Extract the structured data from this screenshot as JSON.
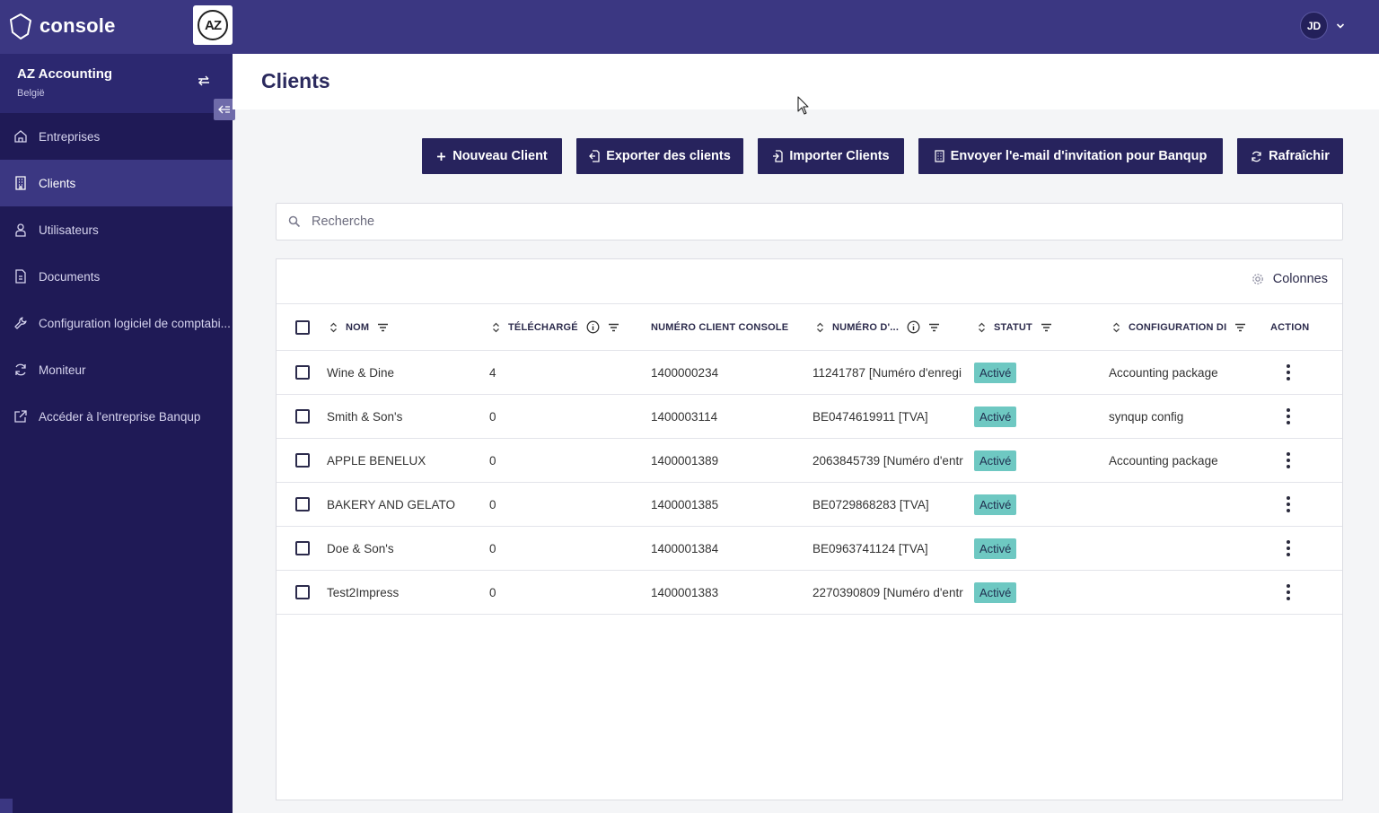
{
  "app": {
    "brand": "console",
    "org_logo": "AZ"
  },
  "user": {
    "initials": "JD"
  },
  "sidebar": {
    "org_name": "AZ Accounting",
    "org_country": "België",
    "items": [
      {
        "label": "Entreprises",
        "icon": "home-icon",
        "active": false
      },
      {
        "label": "Clients",
        "icon": "building-icon",
        "active": true
      },
      {
        "label": "Utilisateurs",
        "icon": "user-icon",
        "active": false
      },
      {
        "label": "Documents",
        "icon": "document-icon",
        "active": false
      },
      {
        "label": "Configuration logiciel de comptabi...",
        "icon": "wrench-icon",
        "active": false
      },
      {
        "label": "Moniteur",
        "icon": "sync-icon",
        "active": false
      },
      {
        "label": "Accéder à l'entreprise Banqup",
        "icon": "external-link-icon",
        "active": false
      }
    ]
  },
  "page": {
    "title": "Clients"
  },
  "toolbar": {
    "new_client": "Nouveau Client",
    "export_clients": "Exporter des clients",
    "import_clients": "Importer Clients",
    "send_invite": "Envoyer l'e-mail d'invitation pour Banqup",
    "refresh": "Rafraîchir"
  },
  "search": {
    "placeholder": "Recherche"
  },
  "table": {
    "columns_button": "Colonnes",
    "headers": {
      "name": "NOM",
      "downloaded": "TÉLÉCHARGÉ",
      "console_number": "NUMÉRO CLIENT CONSOLE",
      "number": "NUMÉRO D'...",
      "status": "STATUT",
      "config": "CONFIGURATION DI",
      "action": "ACTION"
    },
    "rows": [
      {
        "name": "Wine & Dine",
        "downloaded": "4",
        "console_number": "1400000234",
        "number": "11241787 [Numéro d'enregi",
        "status": "Activé",
        "config": "Accounting package"
      },
      {
        "name": "Smith & Son's",
        "downloaded": "0",
        "console_number": "1400003114",
        "number": "BE0474619911 [TVA]",
        "status": "Activé",
        "config": "synqup config"
      },
      {
        "name": "APPLE BENELUX",
        "downloaded": "0",
        "console_number": "1400001389",
        "number": "2063845739 [Numéro d'entr",
        "status": "Activé",
        "config": "Accounting package"
      },
      {
        "name": "BAKERY AND GELATO",
        "downloaded": "0",
        "console_number": "1400001385",
        "number": "BE0729868283 [TVA]",
        "status": "Activé",
        "config": ""
      },
      {
        "name": "Doe & Son's",
        "downloaded": "0",
        "console_number": "1400001384",
        "number": "BE0963741124 [TVA]",
        "status": "Activé",
        "config": ""
      },
      {
        "name": "Test2Impress",
        "downloaded": "0",
        "console_number": "1400001383",
        "number": "2270390809 [Numéro d'entr",
        "status": "Activé",
        "config": ""
      }
    ]
  },
  "colors": {
    "topbar": "#3b3782",
    "sidebar": "#1f1a56",
    "button": "#27235d",
    "status_badge": "#6ec8c2"
  }
}
